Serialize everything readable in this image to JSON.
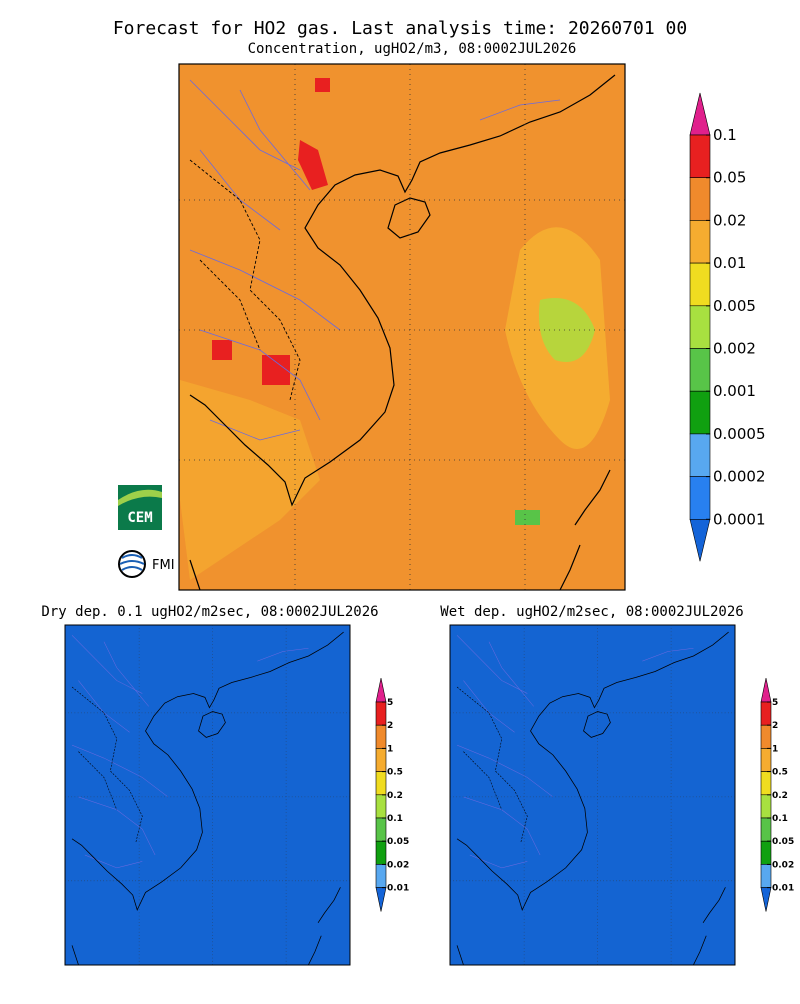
{
  "main": {
    "title": "Forecast for HO2 gas. Last analysis time: 20260701 00",
    "subtitle": "Concentration, ugHO2/m3, 08:0002JUL2026",
    "colorbar": {
      "labels": [
        "0.1",
        "0.05",
        "0.02",
        "0.01",
        "0.005",
        "0.002",
        "0.001",
        "0.0005",
        "0.0002",
        "0.0001"
      ],
      "colors": [
        "#e0208c",
        "#e82020",
        "#f08a2c",
        "#f5ac30",
        "#f0dc20",
        "#a8e040",
        "#58c448",
        "#10a010",
        "#58a8f0",
        "#2880f0",
        "#1464d8"
      ]
    }
  },
  "logos": {
    "cem": "CEM",
    "fmi": "FMI"
  },
  "panels": [
    {
      "title": "Dry dep. 0.1 ugHO2/m2sec, 08:0002JUL2026",
      "colorbar": {
        "labels": [
          "5",
          "2",
          "1",
          "0.5",
          "0.2",
          "0.1",
          "0.05",
          "0.02",
          "0.01"
        ]
      }
    },
    {
      "title": "Wet dep. ugHO2/m2sec, 08:0002JUL2026",
      "colorbar": {
        "labels": [
          "5",
          "2",
          "1",
          "0.5",
          "0.2",
          "0.1",
          "0.05",
          "0.02",
          "0.01"
        ]
      }
    }
  ]
}
